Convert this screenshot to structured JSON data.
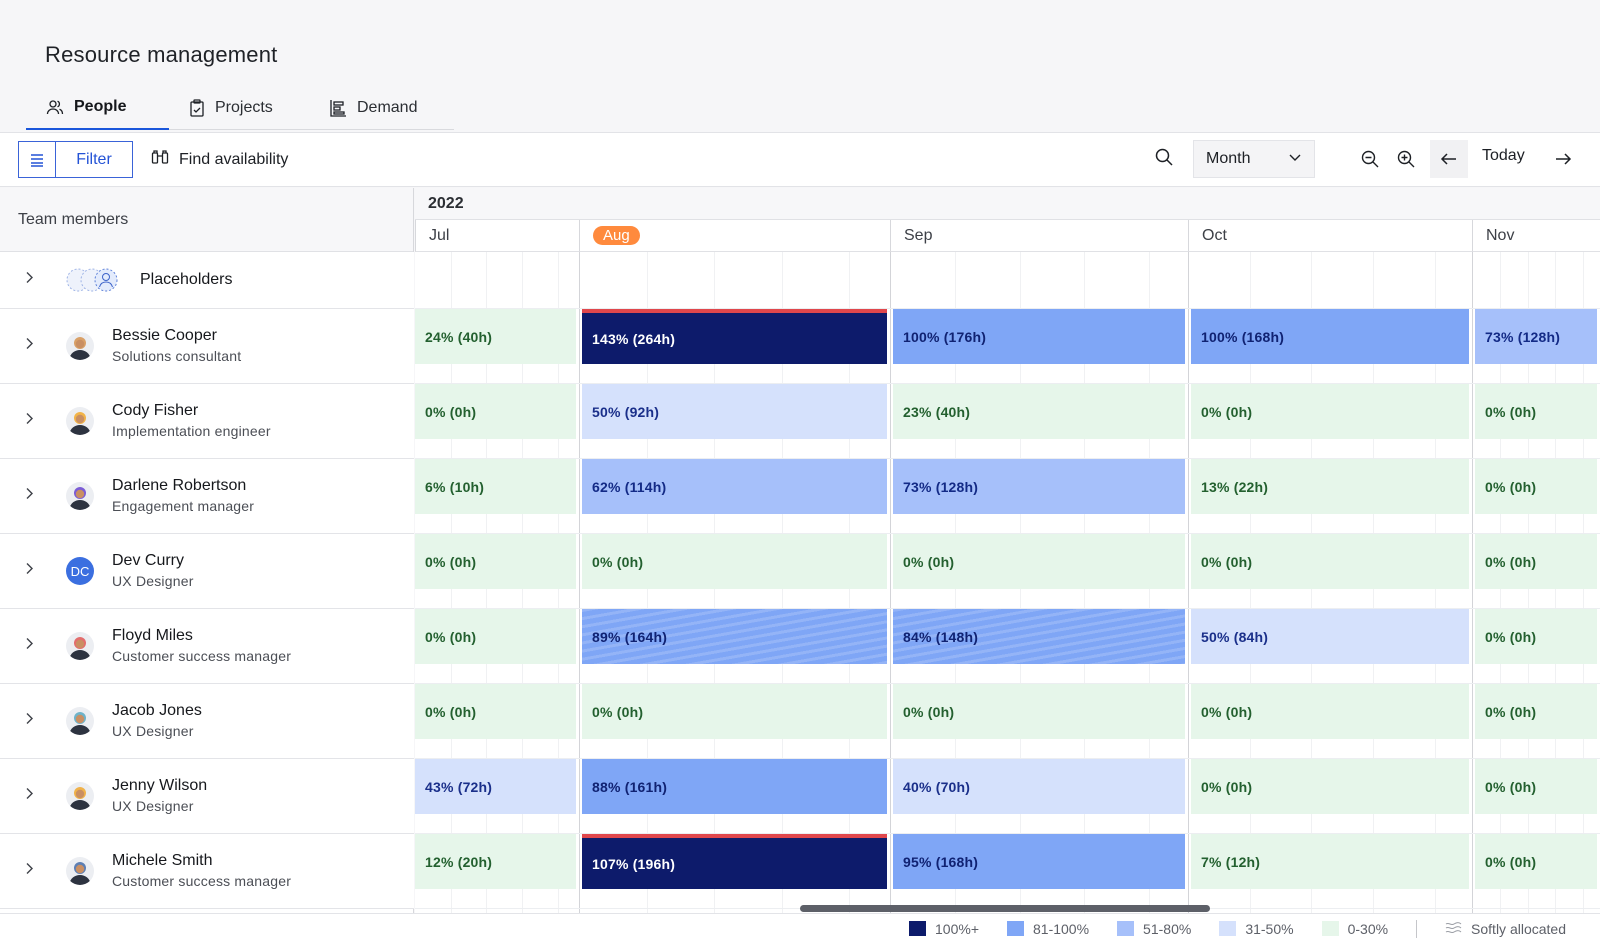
{
  "page": {
    "title": "Resource management"
  },
  "tabs": [
    {
      "label": "People",
      "icon": "people-icon",
      "active": true
    },
    {
      "label": "Projects",
      "icon": "clipboard-icon",
      "active": false
    },
    {
      "label": "Demand",
      "icon": "demand-icon",
      "active": false
    }
  ],
  "toolbar": {
    "filter_label": "Filter",
    "find_availability_label": "Find availability",
    "period_select": "Month",
    "today_label": "Today"
  },
  "team": {
    "header": "Team members",
    "placeholders_label": "Placeholders",
    "members": [
      {
        "name": "Bessie Cooper",
        "role": "Solutions consultant",
        "avatar_color": "#d9a067"
      },
      {
        "name": "Cody Fisher",
        "role": "Implementation engineer",
        "avatar_color": "#f2b449"
      },
      {
        "name": "Darlene Robertson",
        "role": "Engagement manager",
        "avatar_color": "#7b5cd6"
      },
      {
        "name": "Dev Curry",
        "role": "UX Designer",
        "avatar_initials": "DC",
        "avatar_color": "#3b6fe0"
      },
      {
        "name": "Floyd Miles",
        "role": "Customer success manager",
        "avatar_color": "#e36d6d"
      },
      {
        "name": "Jacob Jones",
        "role": "UX Designer",
        "avatar_color": "#6fb3c9"
      },
      {
        "name": "Jenny Wilson",
        "role": "UX Designer",
        "avatar_color": "#f0b24a"
      },
      {
        "name": "Michele Smith",
        "role": "Customer success manager",
        "avatar_color": "#5d7fb3"
      }
    ]
  },
  "timeline": {
    "year": "2022",
    "months": [
      "Jul",
      "Aug",
      "Sep",
      "Oct",
      "Nov"
    ],
    "current_month": "Aug"
  },
  "allocations": [
    [
      {
        "t": "24% (40h)",
        "lvl": "0"
      },
      {
        "t": "143% (264h)",
        "lvl": "100",
        "over": true
      },
      {
        "t": "100% (176h)",
        "lvl": "81"
      },
      {
        "t": "100% (168h)",
        "lvl": "81"
      },
      {
        "t": "73% (128h)",
        "lvl": "51"
      }
    ],
    [
      {
        "t": "0% (0h)",
        "lvl": "0"
      },
      {
        "t": "50% (92h)",
        "lvl": "31"
      },
      {
        "t": "23% (40h)",
        "lvl": "0"
      },
      {
        "t": "0% (0h)",
        "lvl": "0"
      },
      {
        "t": "0% (0h)",
        "lvl": "0"
      }
    ],
    [
      {
        "t": "6% (10h)",
        "lvl": "0"
      },
      {
        "t": "62% (114h)",
        "lvl": "51"
      },
      {
        "t": "73% (128h)",
        "lvl": "51"
      },
      {
        "t": "13% (22h)",
        "lvl": "0"
      },
      {
        "t": "0% (0h)",
        "lvl": "0"
      }
    ],
    [
      {
        "t": "0% (0h)",
        "lvl": "0"
      },
      {
        "t": "0% (0h)",
        "lvl": "0"
      },
      {
        "t": "0% (0h)",
        "lvl": "0"
      },
      {
        "t": "0% (0h)",
        "lvl": "0"
      },
      {
        "t": "0% (0h)",
        "lvl": "0"
      }
    ],
    [
      {
        "t": "0% (0h)",
        "lvl": "0"
      },
      {
        "t": "89% (164h)",
        "lvl": "81",
        "soft": true
      },
      {
        "t": "84% (148h)",
        "lvl": "81",
        "soft": true
      },
      {
        "t": "50% (84h)",
        "lvl": "31"
      },
      {
        "t": "0% (0h)",
        "lvl": "0"
      }
    ],
    [
      {
        "t": "0% (0h)",
        "lvl": "0"
      },
      {
        "t": "0% (0h)",
        "lvl": "0"
      },
      {
        "t": "0% (0h)",
        "lvl": "0"
      },
      {
        "t": "0% (0h)",
        "lvl": "0"
      },
      {
        "t": "0% (0h)",
        "lvl": "0"
      }
    ],
    [
      {
        "t": "43% (72h)",
        "lvl": "31"
      },
      {
        "t": "88% (161h)",
        "lvl": "81"
      },
      {
        "t": "40% (70h)",
        "lvl": "31"
      },
      {
        "t": "0% (0h)",
        "lvl": "0"
      },
      {
        "t": "0% (0h)",
        "lvl": "0"
      }
    ],
    [
      {
        "t": "12% (20h)",
        "lvl": "0"
      },
      {
        "t": "107% (196h)",
        "lvl": "100",
        "over": true
      },
      {
        "t": "95% (168h)",
        "lvl": "81"
      },
      {
        "t": "7% (12h)",
        "lvl": "0"
      },
      {
        "t": "0% (0h)",
        "lvl": "0"
      }
    ]
  ],
  "legend": [
    {
      "label": "100%+",
      "color": "#0d1b6b"
    },
    {
      "label": "81-100%",
      "color": "#7fa6f6"
    },
    {
      "label": "51-80%",
      "color": "#a6c0fa"
    },
    {
      "label": "31-50%",
      "color": "#d5e1fc"
    },
    {
      "label": "0-30%",
      "color": "#e6f6ea"
    },
    {
      "label": "Softly allocated",
      "icon": "softly-allocated-icon"
    }
  ]
}
